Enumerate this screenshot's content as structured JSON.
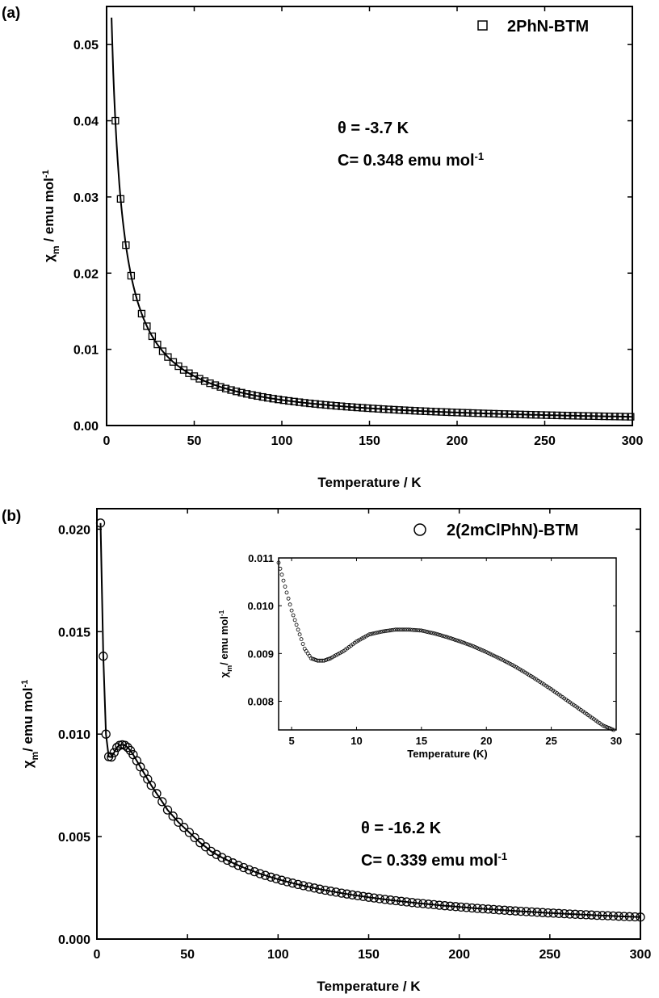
{
  "chart_data": [
    {
      "type": "scatter",
      "panel_label": "(a)",
      "xlabel": "Temperature / K",
      "ylabel": "χm / emu mol-1",
      "ylabel_parts": {
        "main": "χ",
        "sub": "m",
        "rest": " / emu mol",
        "sup": "-1"
      },
      "xlim": [
        0,
        300
      ],
      "ylim": [
        0,
        0.055
      ],
      "xticks": [
        0,
        50,
        100,
        150,
        200,
        250,
        300
      ],
      "xtick_labels": [
        "0",
        "50",
        "100",
        "150",
        "200",
        "250",
        "300"
      ],
      "yticks": [
        0,
        0.01,
        0.02,
        0.03,
        0.04,
        0.05
      ],
      "ytick_labels": [
        "0.00",
        "0.01",
        "0.02",
        "0.03",
        "0.04",
        "0.05"
      ],
      "grid": false,
      "legend_position": "top-right",
      "marker": "square",
      "series": [
        {
          "name": "2PhN-BTM",
          "model": "curie-weiss",
          "x_range": [
            2,
            300
          ],
          "x_step": 3,
          "curve": {
            "C": 0.348,
            "theta": -3.7
          }
        }
      ],
      "annotations": [
        {
          "prefix": "θ = -3.7 K"
        },
        {
          "prefix": "C= 0.348 emu mol",
          "sup": "-1"
        }
      ]
    },
    {
      "type": "scatter",
      "panel_label": "(b)",
      "xlabel": "Temperature / K",
      "ylabel": "χm/ emu mol-1",
      "ylabel_parts": {
        "main": "χ",
        "sub": "m",
        "rest": "/ emu mol",
        "sup": "-1"
      },
      "xlim": [
        0,
        300
      ],
      "ylim": [
        0,
        0.021
      ],
      "xticks": [
        0,
        50,
        100,
        150,
        200,
        250,
        300
      ],
      "xtick_labels": [
        "0",
        "50",
        "100",
        "150",
        "200",
        "250",
        "300"
      ],
      "yticks": [
        0,
        0.005,
        0.01,
        0.015,
        0.02
      ],
      "ytick_labels": [
        "0.000",
        "0.005",
        "0.010",
        "0.015",
        "0.020"
      ],
      "grid": false,
      "legend_position": "top-right",
      "marker": "circle",
      "series": [
        {
          "name": "2(2mClPhN)-BTM",
          "x": [
            2,
            3.5,
            5,
            6.5,
            8,
            9.5,
            11,
            12.5,
            14,
            15.5,
            17,
            18.5,
            20,
            22,
            24,
            26,
            28,
            30,
            33,
            36,
            39,
            42,
            45,
            48,
            51,
            54,
            57,
            60
          ],
          "y": [
            0.0203,
            0.0138,
            0.01,
            0.0089,
            0.00888,
            0.0091,
            0.00935,
            0.00945,
            0.00948,
            0.00945,
            0.00935,
            0.0092,
            0.009,
            0.0087,
            0.0084,
            0.0081,
            0.0078,
            0.0075,
            0.0071,
            0.0067,
            0.0063,
            0.006,
            0.0057,
            0.00545,
            0.0052,
            0.00495,
            0.0047,
            0.0045
          ],
          "tail": {
            "x_range": [
              63,
              300
            ],
            "x_step": 3,
            "C": 0.339,
            "theta": -16.2
          }
        }
      ],
      "annotations": [
        {
          "prefix": "θ = -16.2 K"
        },
        {
          "prefix": "C= 0.339 emu mol",
          "sup": "-1"
        }
      ],
      "inset": {
        "type": "scatter",
        "xlabel": "Temperature (K)",
        "ylabel": "χm/ emu mol-1",
        "ylabel_parts": {
          "main": "χ",
          "sub": "m",
          "rest": "/ emu mol",
          "sup": "-1"
        },
        "xlim": [
          4,
          30
        ],
        "ylim": [
          0.0074,
          0.011
        ],
        "xticks": [
          5,
          10,
          15,
          20,
          25,
          30
        ],
        "xtick_labels": [
          "5",
          "10",
          "15",
          "20",
          "25",
          "30"
        ],
        "yticks": [
          0.008,
          0.009,
          0.01,
          0.011
        ],
        "ytick_labels": [
          "0.008",
          "0.009",
          "0.010",
          "0.011"
        ],
        "x": [
          4,
          4.5,
          5,
          5.5,
          6,
          6.5,
          7,
          7.5,
          8,
          9,
          10,
          11,
          12,
          13,
          14,
          15,
          16,
          17,
          18,
          19,
          20,
          21,
          22,
          23,
          24,
          25,
          26,
          27,
          28,
          29,
          29.8
        ],
        "y": [
          0.0109,
          0.0104,
          0.0099,
          0.0095,
          0.0091,
          0.0089,
          0.00885,
          0.00885,
          0.0089,
          0.00905,
          0.00925,
          0.0094,
          0.00946,
          0.0095,
          0.0095,
          0.00948,
          0.00942,
          0.00934,
          0.00925,
          0.00915,
          0.00903,
          0.0089,
          0.00876,
          0.0086,
          0.00843,
          0.00825,
          0.00806,
          0.00787,
          0.00768,
          0.00749,
          0.0074
        ]
      }
    }
  ]
}
